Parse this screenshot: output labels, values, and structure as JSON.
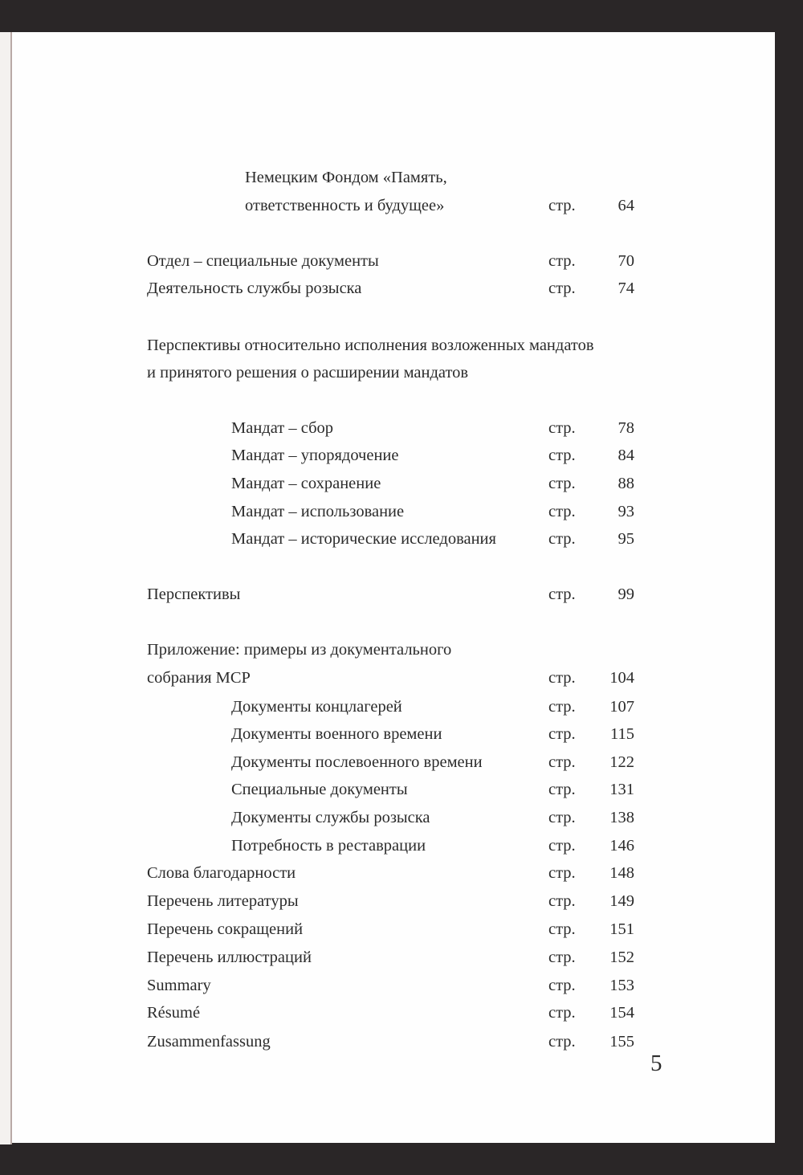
{
  "colors": {
    "background": "#2a2627",
    "paper": "#fefefe",
    "text": "#2b2b2b"
  },
  "toc": [
    {
      "title": "Немецким Фондом «Память,",
      "indent": 2,
      "label": "",
      "page": ""
    },
    {
      "title": "ответственность и будущее»",
      "indent": 2,
      "label": "стр.",
      "page": "64"
    },
    {
      "title": "Отдел – специальные документы",
      "indent": 0,
      "label": "стр.",
      "page": "70"
    },
    {
      "title": "Деятельность службы розыска",
      "indent": 0,
      "label": "стр.",
      "page": "74"
    },
    {
      "title": "Перспективы относительно исполнения возложенных мандатов",
      "indent": 0,
      "label": "",
      "page": ""
    },
    {
      "title": "и принятого решения о расширении мандатов",
      "indent": 0,
      "label": "",
      "page": ""
    },
    {
      "title": "Мандат – сбор",
      "indent": 1,
      "label": "стр.",
      "page": "78"
    },
    {
      "title": "Мандат – упорядочение",
      "indent": 1,
      "label": "стр.",
      "page": "84"
    },
    {
      "title": "Мандат – сохранение",
      "indent": 1,
      "label": "стр.",
      "page": "88"
    },
    {
      "title": "Мандат – использование",
      "indent": 1,
      "label": "стр.",
      "page": "93"
    },
    {
      "title": "Мандат – исторические исследования",
      "indent": 1,
      "label": "стр.",
      "page": "95"
    },
    {
      "title": "Перспективы",
      "indent": 0,
      "label": "стр.",
      "page": "99"
    },
    {
      "title": "Приложение: примеры из документального",
      "indent": 0,
      "label": "",
      "page": ""
    },
    {
      "title": "собрания МСР",
      "indent": 0,
      "label": "стр.",
      "page": "104"
    },
    {
      "title": "Документы концлагерей",
      "indent": 1,
      "label": "стр.",
      "page": "107"
    },
    {
      "title": "Документы военного времени",
      "indent": 1,
      "label": "стр.",
      "page": "115"
    },
    {
      "title": "Документы послевоенного времени",
      "indent": 1,
      "label": "стр.",
      "page": "122"
    },
    {
      "title": "Специальные документы",
      "indent": 1,
      "label": "стр.",
      "page": "131"
    },
    {
      "title": "Документы службы розыска",
      "indent": 1,
      "label": "стр.",
      "page": "138"
    },
    {
      "title": "Потребность в реставрации",
      "indent": 1,
      "label": "стр.",
      "page": "146"
    },
    {
      "title": "Слова благодарности",
      "indent": 0,
      "label": "стр.",
      "page": "148"
    },
    {
      "title": "Перечень литературы",
      "indent": 0,
      "label": "стр.",
      "page": "149"
    },
    {
      "title": "Перечень сокращений",
      "indent": 0,
      "label": "стр.",
      "page": "151"
    },
    {
      "title": "Перечень иллюстраций",
      "indent": 0,
      "label": "стр.",
      "page": "152"
    },
    {
      "title": "Summary",
      "indent": 0,
      "label": "стр.",
      "page": "153"
    },
    {
      "title": "Résumé",
      "indent": 0,
      "label": "стр.",
      "page": "154"
    },
    {
      "title": "Zusammenfassung",
      "indent": 0,
      "label": "стр.",
      "page": "155"
    }
  ],
  "page_number": "5"
}
